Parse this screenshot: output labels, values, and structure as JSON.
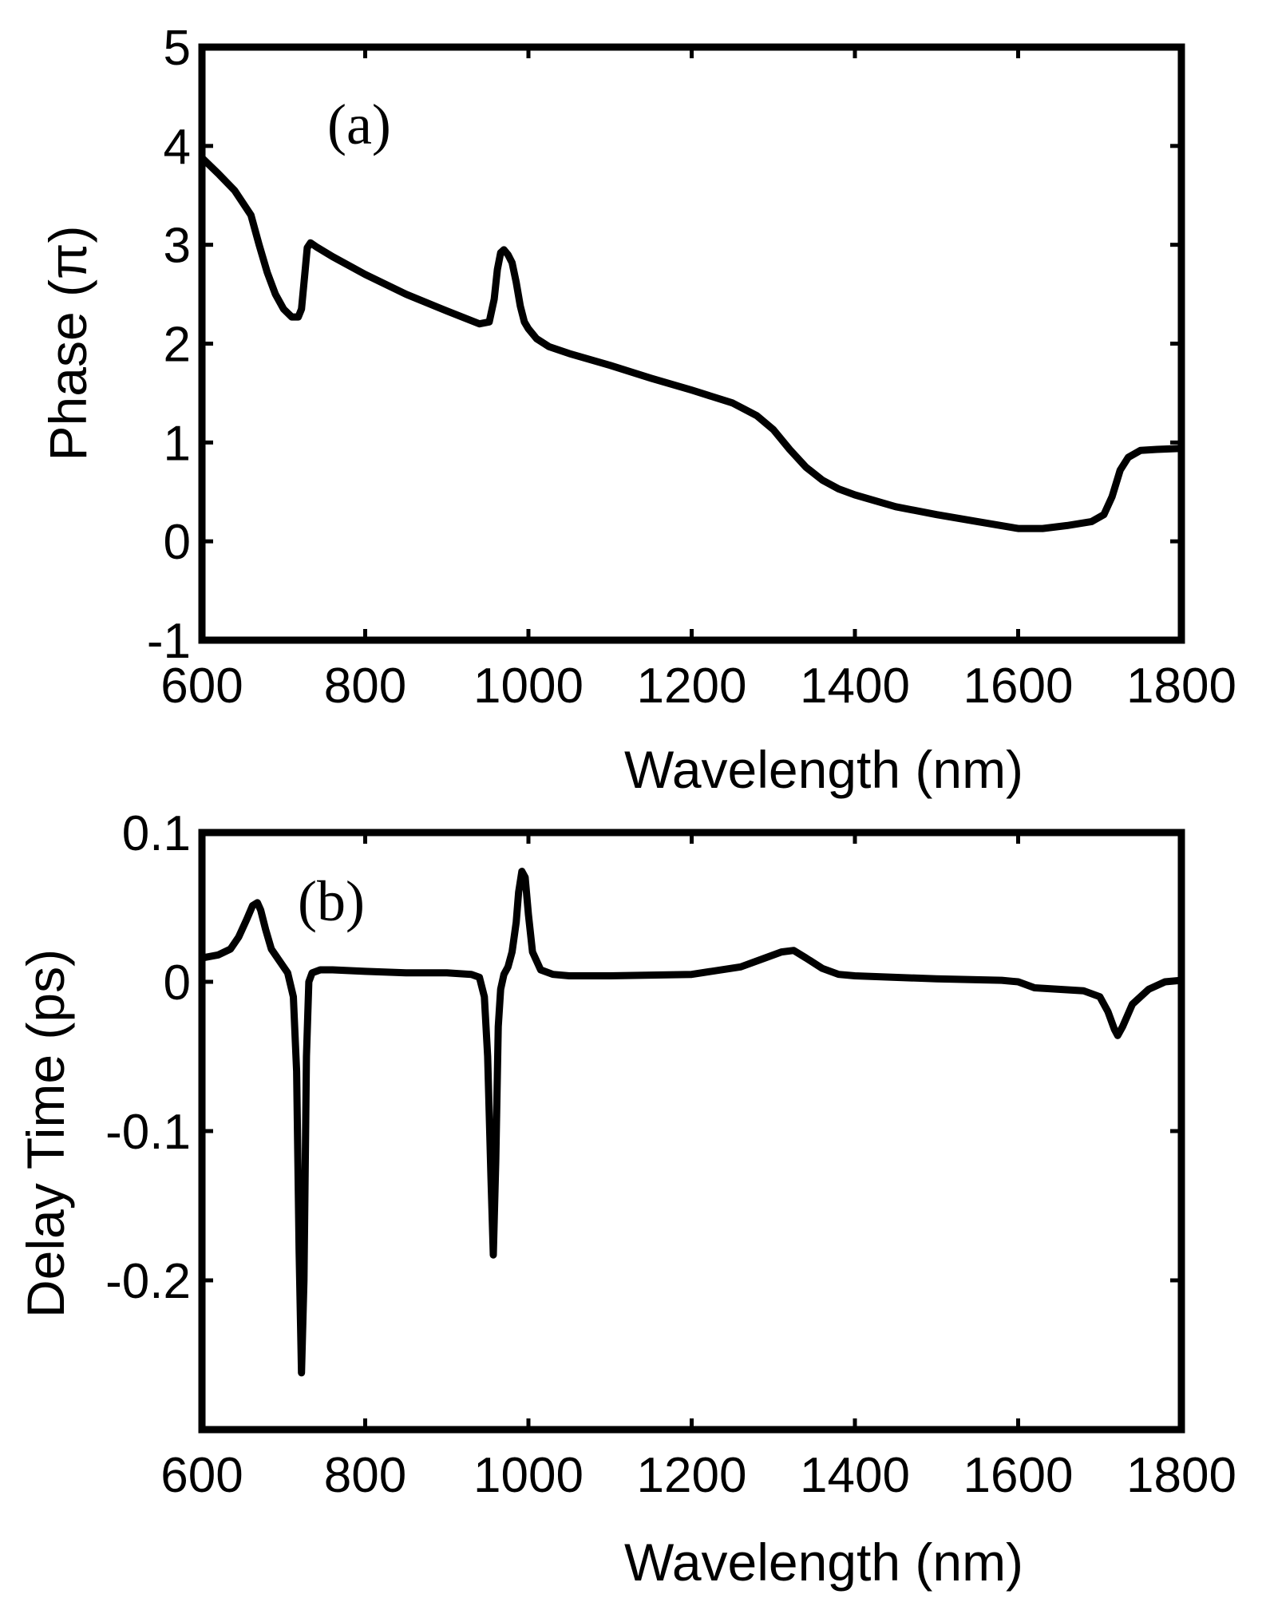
{
  "chart_data": [
    {
      "type": "line",
      "panel_label": "(a)",
      "xlabel": "Wavelength (nm)",
      "ylabel": "Phase (π)",
      "xlim": [
        600,
        1800
      ],
      "ylim": [
        -1,
        5
      ],
      "xticks": [
        600,
        800,
        1000,
        1200,
        1400,
        1600,
        1800
      ],
      "yticks": [
        -1,
        0,
        1,
        2,
        3,
        4,
        5
      ],
      "xtick_labels": [
        "600",
        "800",
        "1000",
        "1200",
        "1400",
        "1600",
        "1800"
      ],
      "ytick_labels": [
        "-1",
        "0",
        "1",
        "2",
        "3",
        "4",
        "5"
      ],
      "grid": false,
      "series": [
        {
          "name": "phase",
          "x": [
            600,
            620,
            640,
            660,
            670,
            680,
            690,
            700,
            710,
            718,
            722,
            726,
            729,
            733,
            740,
            760,
            800,
            850,
            900,
            940,
            952,
            958,
            962,
            966,
            970,
            975,
            980,
            985,
            990,
            995,
            1000,
            1010,
            1025,
            1050,
            1100,
            1150,
            1200,
            1250,
            1280,
            1300,
            1320,
            1340,
            1360,
            1380,
            1400,
            1450,
            1500,
            1550,
            1600,
            1630,
            1660,
            1690,
            1705,
            1715,
            1725,
            1735,
            1750,
            1770,
            1800
          ],
          "y": [
            3.88,
            3.72,
            3.55,
            3.3,
            3.0,
            2.72,
            2.5,
            2.35,
            2.27,
            2.27,
            2.35,
            2.7,
            2.97,
            3.02,
            2.98,
            2.88,
            2.7,
            2.5,
            2.33,
            2.2,
            2.22,
            2.45,
            2.75,
            2.92,
            2.95,
            2.9,
            2.82,
            2.62,
            2.38,
            2.22,
            2.15,
            2.05,
            1.97,
            1.9,
            1.78,
            1.65,
            1.53,
            1.4,
            1.27,
            1.13,
            0.93,
            0.75,
            0.62,
            0.53,
            0.47,
            0.35,
            0.27,
            0.2,
            0.13,
            0.13,
            0.16,
            0.2,
            0.27,
            0.45,
            0.72,
            0.85,
            0.92,
            0.93,
            0.94
          ]
        }
      ]
    },
    {
      "type": "line",
      "panel_label": "(b)",
      "xlabel": "Wavelength (nm)",
      "ylabel": "Delay Time (ps)",
      "xlim": [
        600,
        1800
      ],
      "ylim": [
        -0.3,
        0.1
      ],
      "xticks": [
        600,
        800,
        1000,
        1200,
        1400,
        1600,
        1800
      ],
      "yticks": [
        -0.2,
        -0.1,
        0,
        0.1
      ],
      "xtick_labels": [
        "600",
        "800",
        "1000",
        "1200",
        "1400",
        "1600",
        "1800"
      ],
      "ytick_labels": [
        "-0.2",
        "-0.1",
        "0",
        "0.1"
      ],
      "grid": false,
      "series": [
        {
          "name": "delay",
          "x": [
            600,
            620,
            635,
            645,
            655,
            662,
            668,
            672,
            678,
            685,
            695,
            705,
            712,
            716,
            719,
            722,
            725,
            728,
            731,
            735,
            745,
            760,
            800,
            850,
            900,
            930,
            940,
            946,
            950,
            954,
            957,
            960,
            963,
            966,
            970,
            975,
            980,
            985,
            988,
            992,
            996,
            1000,
            1005,
            1015,
            1030,
            1050,
            1100,
            1200,
            1260,
            1290,
            1310,
            1325,
            1340,
            1360,
            1380,
            1400,
            1500,
            1580,
            1600,
            1620,
            1680,
            1700,
            1710,
            1718,
            1722,
            1728,
            1740,
            1760,
            1780,
            1800
          ],
          "y": [
            0.016,
            0.018,
            0.022,
            0.03,
            0.042,
            0.051,
            0.053,
            0.048,
            0.035,
            0.022,
            0.014,
            0.006,
            -0.01,
            -0.06,
            -0.18,
            -0.262,
            -0.2,
            -0.05,
            0.0,
            0.006,
            0.008,
            0.008,
            0.007,
            0.006,
            0.006,
            0.005,
            0.003,
            -0.01,
            -0.05,
            -0.13,
            -0.183,
            -0.12,
            -0.03,
            -0.005,
            0.005,
            0.01,
            0.02,
            0.04,
            0.06,
            0.074,
            0.07,
            0.045,
            0.02,
            0.008,
            0.005,
            0.004,
            0.004,
            0.005,
            0.01,
            0.016,
            0.02,
            0.021,
            0.016,
            0.009,
            0.005,
            0.004,
            0.002,
            0.001,
            0.0,
            -0.004,
            -0.006,
            -0.01,
            -0.02,
            -0.032,
            -0.036,
            -0.03,
            -0.015,
            -0.005,
            0.0,
            0.001
          ]
        }
      ]
    }
  ]
}
